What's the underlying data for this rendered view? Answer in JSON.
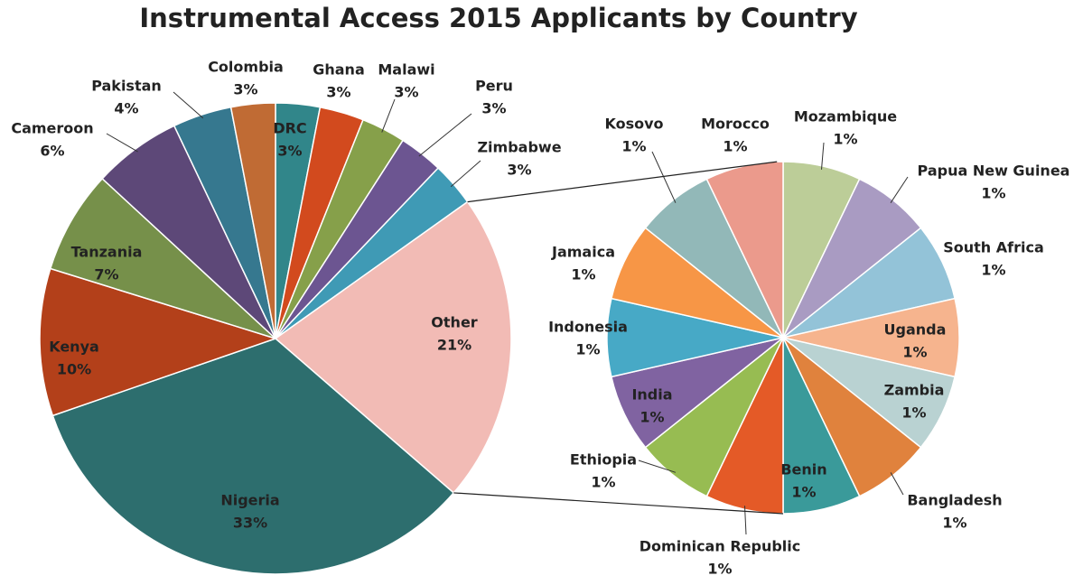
{
  "chart_data": [
    {
      "type": "pie",
      "title": "Instrumental Access 2015 Applicants by Country",
      "categories": [
        "DRC",
        "Ghana",
        "Malawi",
        "Peru",
        "Zimbabwe",
        "Other",
        "Nigeria",
        "Kenya",
        "Tanzania",
        "Cameroon",
        "Pakistan",
        "Colombia"
      ],
      "values": [
        3,
        3,
        3,
        3,
        3,
        21,
        33,
        10,
        7,
        6,
        4,
        3
      ],
      "value_labels": [
        "3%",
        "3%",
        "3%",
        "3%",
        "3%",
        "21%",
        "33%",
        "10%",
        "7%",
        "6%",
        "4%",
        "3%"
      ],
      "colors": [
        "#31868a",
        "#d24a1e",
        "#86a04a",
        "#6c5591",
        "#3f9ab5",
        "#f2bbb5",
        "#2d6e6e",
        "#b3401a",
        "#76904a",
        "#5d4878",
        "#36788f",
        "#c06b34"
      ]
    },
    {
      "type": "pie",
      "categories": [
        "Mozambique",
        "Papua New Guinea",
        "South Africa",
        "Uganda",
        "Zambia",
        "Bangladesh",
        "Benin",
        "Dominican Republic",
        "Ethiopia",
        "India",
        "Indonesia",
        "Jamaica",
        "Kosovo",
        "Morocco"
      ],
      "values": [
        1,
        1,
        1,
        1,
        1,
        1,
        1,
        1,
        1,
        1,
        1,
        1,
        1,
        1
      ],
      "value_labels": [
        "1%",
        "1%",
        "1%",
        "1%",
        "1%",
        "1%",
        "1%",
        "1%",
        "1%",
        "1%",
        "1%",
        "1%",
        "1%",
        "1%"
      ],
      "colors": [
        "#bccd98",
        "#a99bc2",
        "#93c3d8",
        "#f6b48e",
        "#b9d2d2",
        "#e0823d",
        "#3a9a9a",
        "#e45a27",
        "#97bc52",
        "#8063a1",
        "#47a9c6",
        "#f79646",
        "#92b8b8",
        "#eb9a8c"
      ]
    }
  ]
}
